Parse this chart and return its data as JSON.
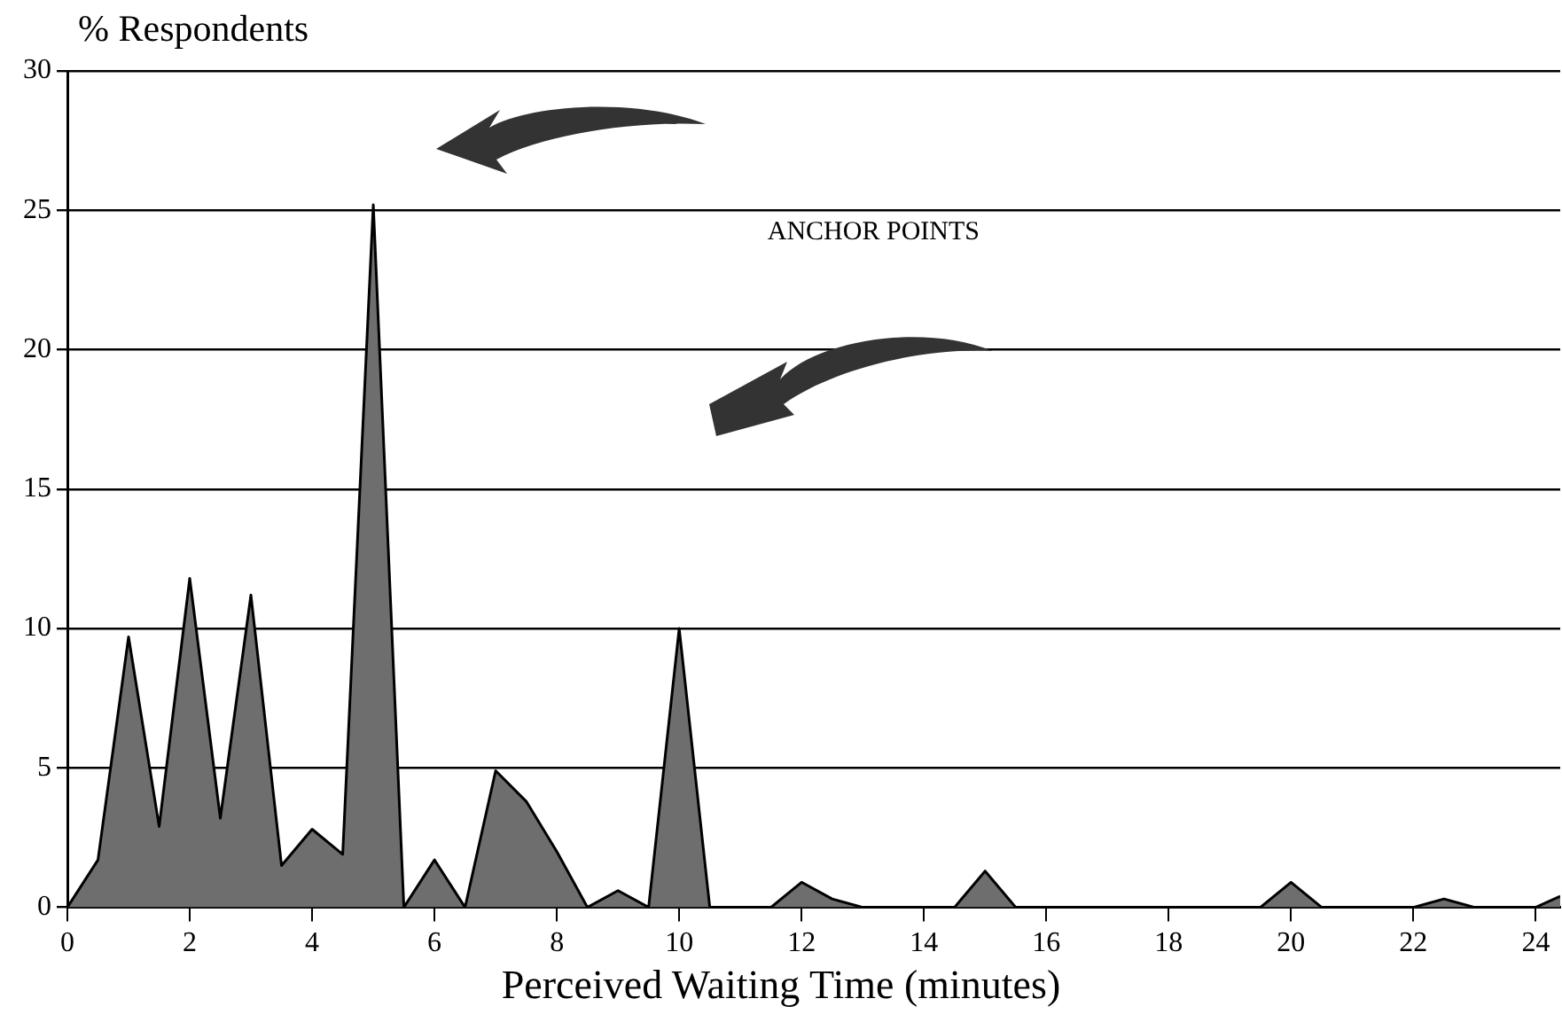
{
  "chart_data": {
    "type": "area",
    "ylabel": "% Respondents",
    "xlabel": "Perceived Waiting Time (minutes)",
    "annotations": [
      "ANCHOR POINTS"
    ],
    "x": [
      0,
      0.5,
      1,
      1.5,
      2,
      2.5,
      3,
      3.5,
      4,
      4.5,
      5,
      5.5,
      6,
      6.5,
      7,
      7.5,
      8,
      8.5,
      9,
      9.5,
      10,
      10.5,
      11.5,
      12,
      12.5,
      13,
      14.5,
      15,
      15.5,
      19.5,
      20,
      20.5,
      22,
      22.5,
      23,
      24,
      24.4
    ],
    "series": [
      {
        "color": "#6e6e6e",
        "values": [
          0,
          1.7,
          9.7,
          2.9,
          11.8,
          3.2,
          11.2,
          1.5,
          2.8,
          1.9,
          25.2,
          0,
          1.7,
          0,
          4.9,
          3.8,
          2,
          0,
          0.6,
          0,
          10,
          0,
          0,
          0.9,
          0.3,
          0,
          0,
          1.3,
          0,
          0,
          0.9,
          0,
          0,
          0.3,
          0,
          0,
          0.4
        ]
      }
    ],
    "xlim": [
      0,
      24.4
    ],
    "xticks": [
      0,
      2,
      4,
      6,
      8,
      10,
      12,
      14,
      16,
      18,
      20,
      22,
      24
    ],
    "ylim": [
      0,
      30
    ],
    "yticks": [
      0,
      5,
      10,
      15,
      20,
      25,
      30
    ],
    "grid": "y",
    "legend": false
  }
}
